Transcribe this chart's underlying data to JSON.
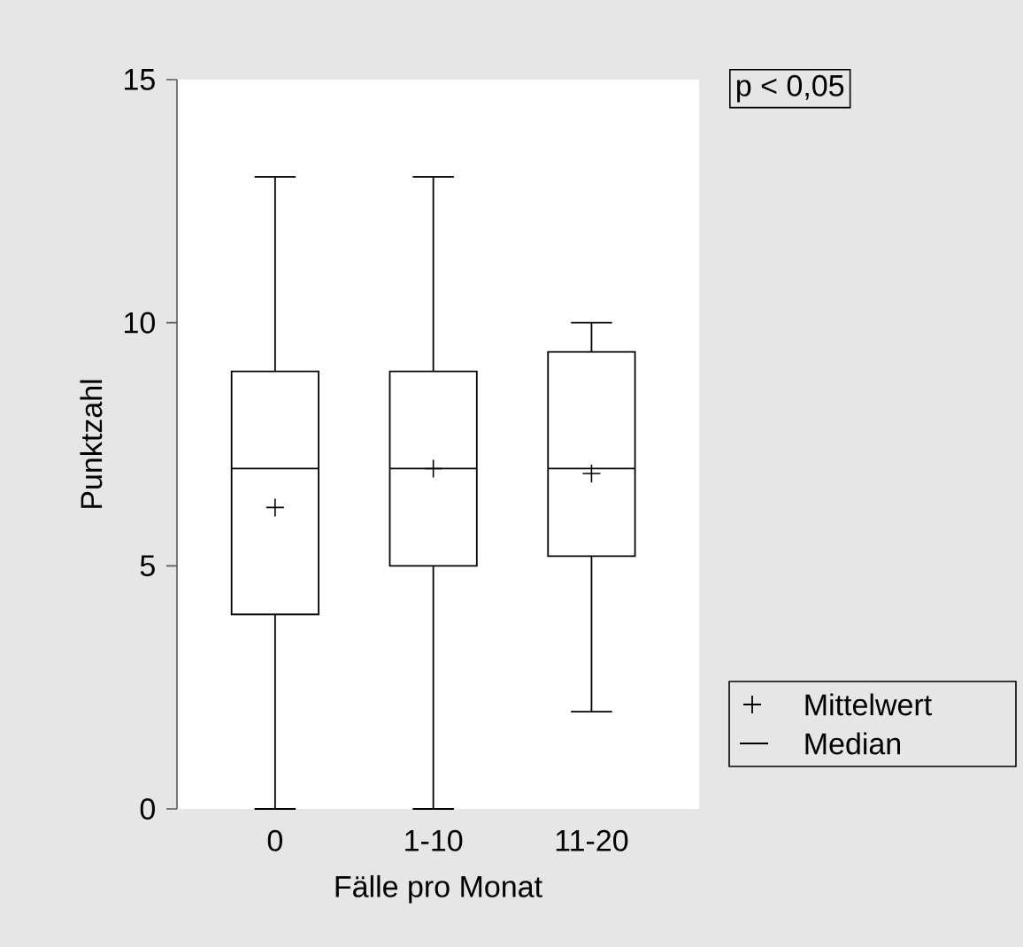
{
  "chart_data": {
    "type": "box",
    "xlabel": "Fälle pro Monat",
    "ylabel": "Punktzahl",
    "categories": [
      "0",
      "1-10",
      "11-20"
    ],
    "boxes": [
      {
        "low": 0,
        "q1": 4,
        "median": 7,
        "q3": 9,
        "high": 13,
        "mean": 6.2
      },
      {
        "low": 0,
        "q1": 5,
        "median": 7,
        "q3": 9,
        "high": 13,
        "mean": 7.0
      },
      {
        "low": 2,
        "q1": 5.2,
        "median": 7,
        "q3": 9.4,
        "high": 10,
        "mean": 6.9
      }
    ],
    "color": "#000000",
    "ylim": [
      0,
      15
    ],
    "yticks": [
      0,
      5,
      10,
      15
    ],
    "grid": false,
    "annotations": [
      "p < 0,05",
      "Mittelwert",
      "Median"
    ]
  }
}
